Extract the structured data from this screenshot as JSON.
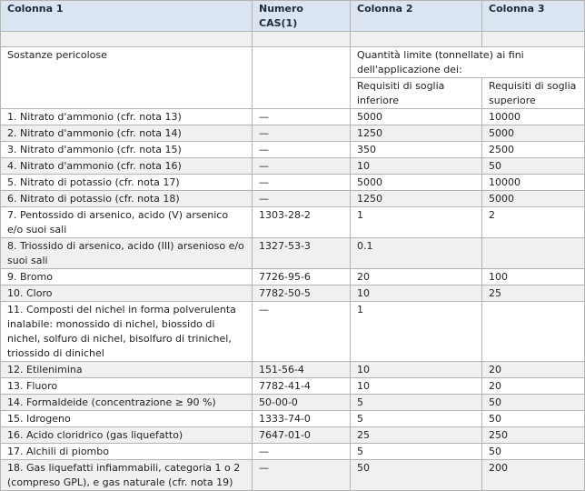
{
  "header": {
    "col1": "Colonna 1",
    "cas": "Numero CAS(1)",
    "col2": "Colonna 2",
    "col3": "Colonna 3"
  },
  "intro": {
    "substances_label": "Sostanze pericolose",
    "quantity_label": "Quantità limite (tonnellate) ai fini dell'applicazione dei:",
    "lower_label": "Requisiti di soglia inferiore",
    "upper_label": "Requisiti di soglia superiore"
  },
  "rows": [
    {
      "name": "1. Nitrato d'ammonio (cfr. nota 13)",
      "cas": "—",
      "lower": "5000",
      "upper": "10000"
    },
    {
      "name": "2. Nitrato d'ammonio (cfr. nota 14)",
      "cas": "—",
      "lower": "1250",
      "upper": "5000"
    },
    {
      "name": "3. Nitrato d'ammonio (cfr. nota 15)",
      "cas": "—",
      "lower": "350",
      "upper": "2500"
    },
    {
      "name": "4. Nitrato d'ammonio (cfr. nota 16)",
      "cas": "—",
      "lower": "10",
      "upper": "50"
    },
    {
      "name": "5. Nitrato di potassio (cfr. nota 17)",
      "cas": "—",
      "lower": "5000",
      "upper": "10000"
    },
    {
      "name": "6. Nitrato di potassio (cfr. nota 18)",
      "cas": "—",
      "lower": "1250",
      "upper": "5000"
    },
    {
      "name": "7. Pentossido di arsenico, acido (V) arsenico e/o suoi sali",
      "cas": "1303-28-2",
      "lower": "1",
      "upper": "2"
    },
    {
      "name": "8. Triossido di arsenico, acido (III) arsenioso e/o suoi sali",
      "cas": "1327-53-3",
      "lower": "0.1",
      "upper": ""
    },
    {
      "name": "9. Bromo",
      "cas": "7726-95-6",
      "lower": "20",
      "upper": "100"
    },
    {
      "name": "10. Cloro",
      "cas": "7782-50-5",
      "lower": "10",
      "upper": "25"
    },
    {
      "name": "11. Composti del nichel in forma polverulenta inalabile: monossido di nichel, biossido di nichel, solfuro di nichel, bisolfuro di trinichel, triossido di dinichel",
      "cas": "—",
      "lower": "1",
      "upper": ""
    },
    {
      "name": "12. Etilenimina",
      "cas": "151-56-4",
      "lower": "10",
      "upper": "20"
    },
    {
      "name": "13. Fluoro",
      "cas": "7782-41-4",
      "lower": "10",
      "upper": "20"
    },
    {
      "name": "14. Formaldeide (concentrazione ≥ 90 %)",
      "cas": "50-00-0",
      "lower": "5",
      "upper": "50"
    },
    {
      "name": "15. Idrogeno",
      "cas": "1333-74-0",
      "lower": "5",
      "upper": "50"
    },
    {
      "name": "16. Acido cloridrico (gas liquefatto)",
      "cas": "7647-01-0",
      "lower": "25",
      "upper": "250"
    },
    {
      "name": "17. Alchili di piombo",
      "cas": "—",
      "lower": "5",
      "upper": "50"
    },
    {
      "name": "18. Gas liquefatti infiammabili, categoria 1 o 2 (compreso GPL), e gas naturale (cfr. nota 19)",
      "cas": "—",
      "lower": "50",
      "upper": "200"
    }
  ]
}
